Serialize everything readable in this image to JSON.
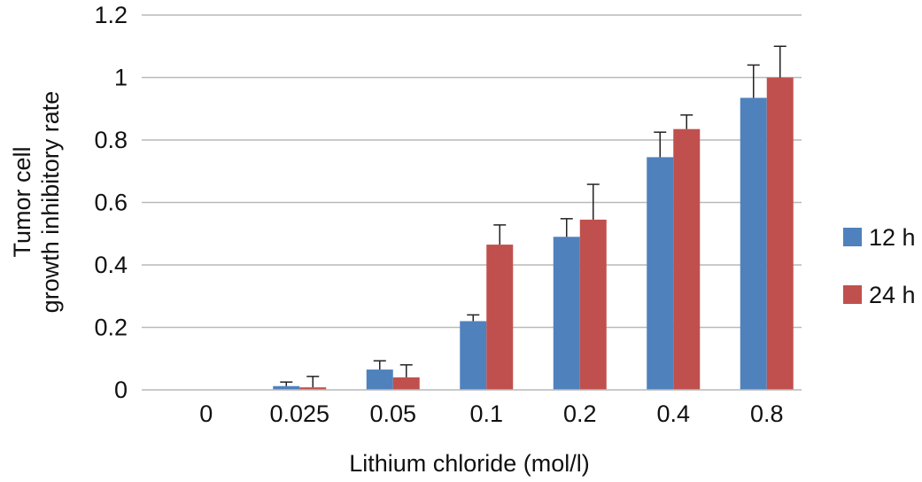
{
  "chart_data": {
    "type": "bar",
    "title": "",
    "xlabel": "Lithium chloride (mol/l)",
    "ylabel_lines": [
      "Tumor cell",
      "growth inhibitory rate"
    ],
    "categories": [
      "0",
      "0.025",
      "0.05",
      "0.1",
      "0.2",
      "0.4",
      "0.8"
    ],
    "ylim": [
      0,
      1.2
    ],
    "yticks": [
      0,
      0.2,
      0.4,
      0.6,
      0.8,
      1,
      1.2
    ],
    "ytick_labels": [
      "0",
      "0.2",
      "0.4",
      "0.6",
      "0.8",
      "1",
      "1.2"
    ],
    "grid": true,
    "legend_position": "right",
    "series": [
      {
        "name": "12 h",
        "color": "#4f81bd",
        "values": [
          0,
          0.012,
          0.065,
          0.22,
          0.49,
          0.745,
          0.935
        ],
        "errors": [
          0,
          0.013,
          0.028,
          0.02,
          0.058,
          0.08,
          0.105
        ]
      },
      {
        "name": "24 h",
        "color": "#c0504d",
        "values": [
          0,
          0.008,
          0.04,
          0.465,
          0.545,
          0.835,
          1.0
        ],
        "errors": [
          0,
          0.035,
          0.04,
          0.063,
          0.113,
          0.045,
          0.1
        ]
      }
    ]
  }
}
